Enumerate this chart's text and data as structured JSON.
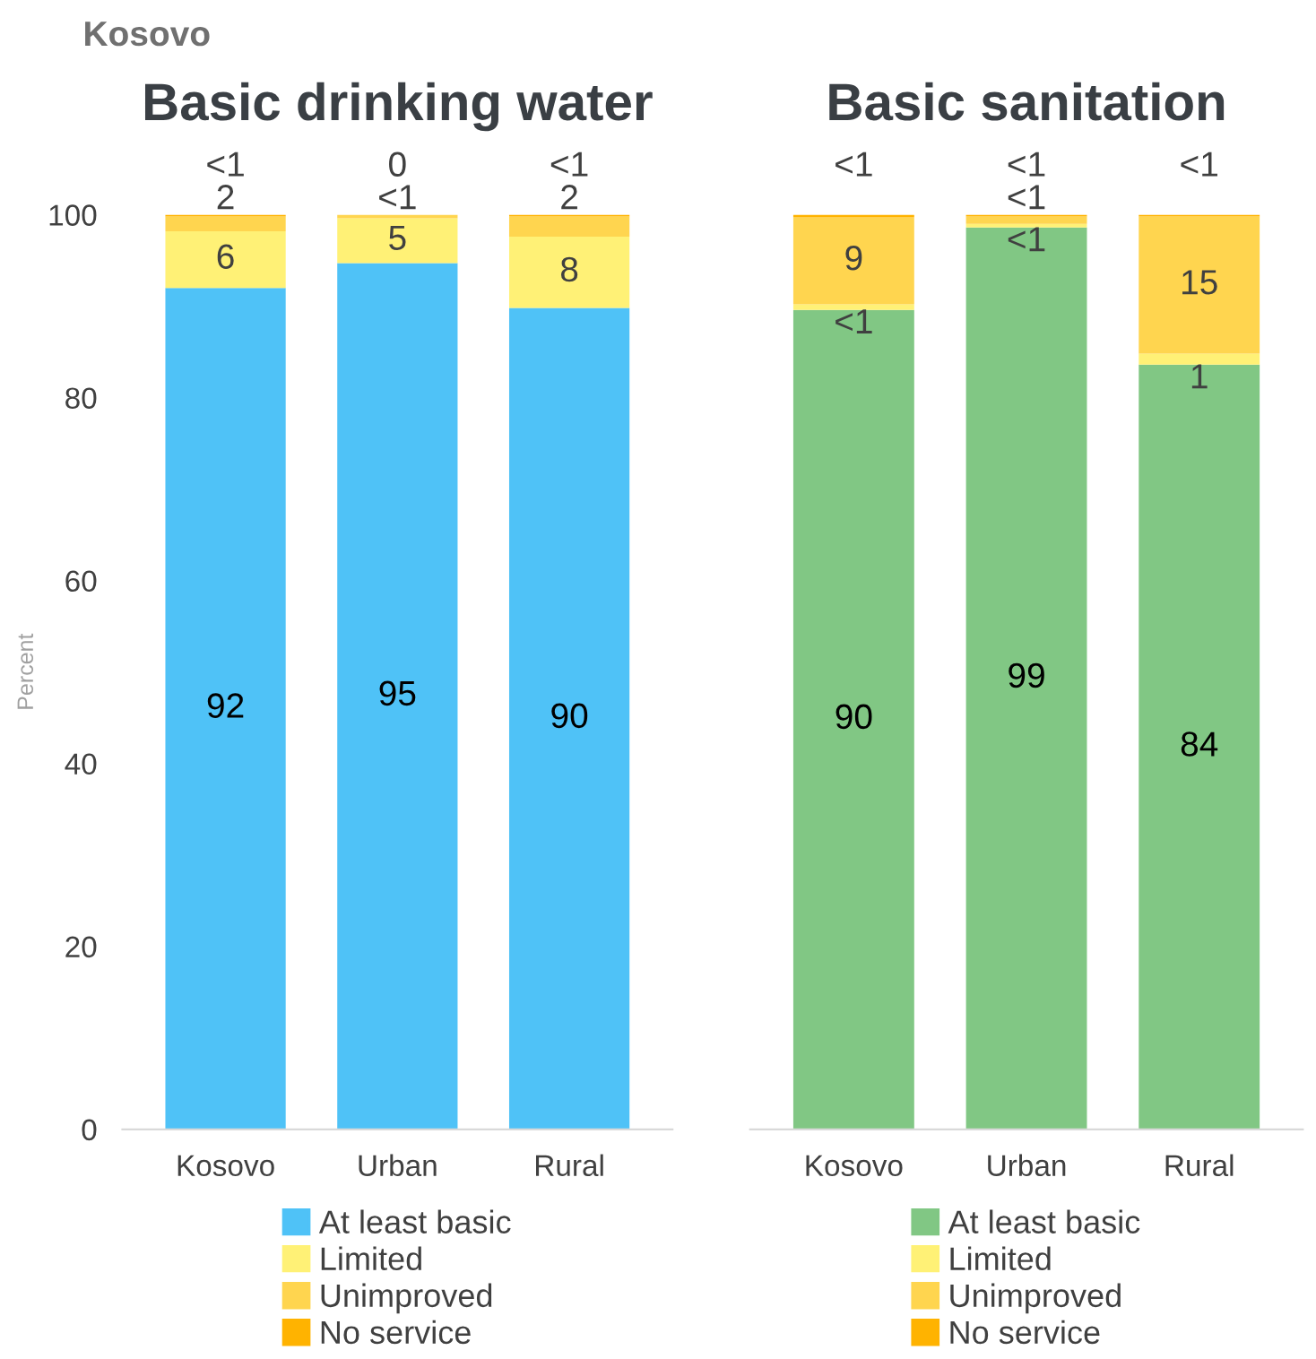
{
  "chart_data": [
    {
      "type": "bar",
      "title": "Basic drinking water",
      "ylabel": "Percent",
      "annotations": [
        "Kosovo"
      ],
      "stacked": true,
      "categories": [
        "Kosovo",
        "Urban",
        "Rural"
      ],
      "ylim": [
        0,
        100
      ],
      "yticks": [
        0,
        20,
        40,
        60,
        80,
        100
      ],
      "legend": "bottom",
      "grid": false,
      "series": [
        {
          "name": "At least basic",
          "color": "#4fc2f7",
          "values": [
            92.0,
            94.7,
            89.8
          ],
          "value_labels": [
            "92",
            "95",
            "90"
          ]
        },
        {
          "name": "Limited",
          "color": "#fff176",
          "values": [
            6.2,
            4.9,
            7.8
          ],
          "value_labels": [
            "6",
            "5",
            "8"
          ]
        },
        {
          "name": "Unimproved",
          "color": "#ffd54f",
          "values": [
            1.6,
            0.4,
            2.2
          ],
          "value_labels": [
            "2",
            "<1",
            "2"
          ]
        },
        {
          "name": "No service",
          "color": "#ffb300",
          "values": [
            0.2,
            0,
            0.2
          ],
          "value_labels": [
            "<1",
            "0",
            "<1"
          ]
        }
      ]
    },
    {
      "type": "bar",
      "title": "Basic sanitation",
      "stacked": true,
      "categories": [
        "Kosovo",
        "Urban",
        "Rural"
      ],
      "ylim": [
        0,
        100
      ],
      "tick_labels": "x",
      "legend": "bottom",
      "grid": false,
      "series": [
        {
          "name": "At least basic",
          "color": "#81c784",
          "values": [
            89.6,
            98.6,
            83.6
          ],
          "value_labels": [
            "90",
            "99",
            "84"
          ]
        },
        {
          "name": "Limited",
          "color": "#fff176",
          "values": [
            0.6,
            0.4,
            1.2
          ],
          "value_labels": [
            "<1",
            "<1",
            "1"
          ]
        },
        {
          "name": "Unimproved",
          "color": "#ffd54f",
          "values": [
            9.5,
            0.8,
            15
          ],
          "value_labels": [
            "9",
            "<1",
            "15"
          ]
        },
        {
          "name": "No service",
          "color": "#ffb300",
          "values": [
            0.3,
            0.2,
            0.2
          ],
          "value_labels": [
            "<1",
            "<1",
            "<1"
          ]
        }
      ]
    }
  ]
}
